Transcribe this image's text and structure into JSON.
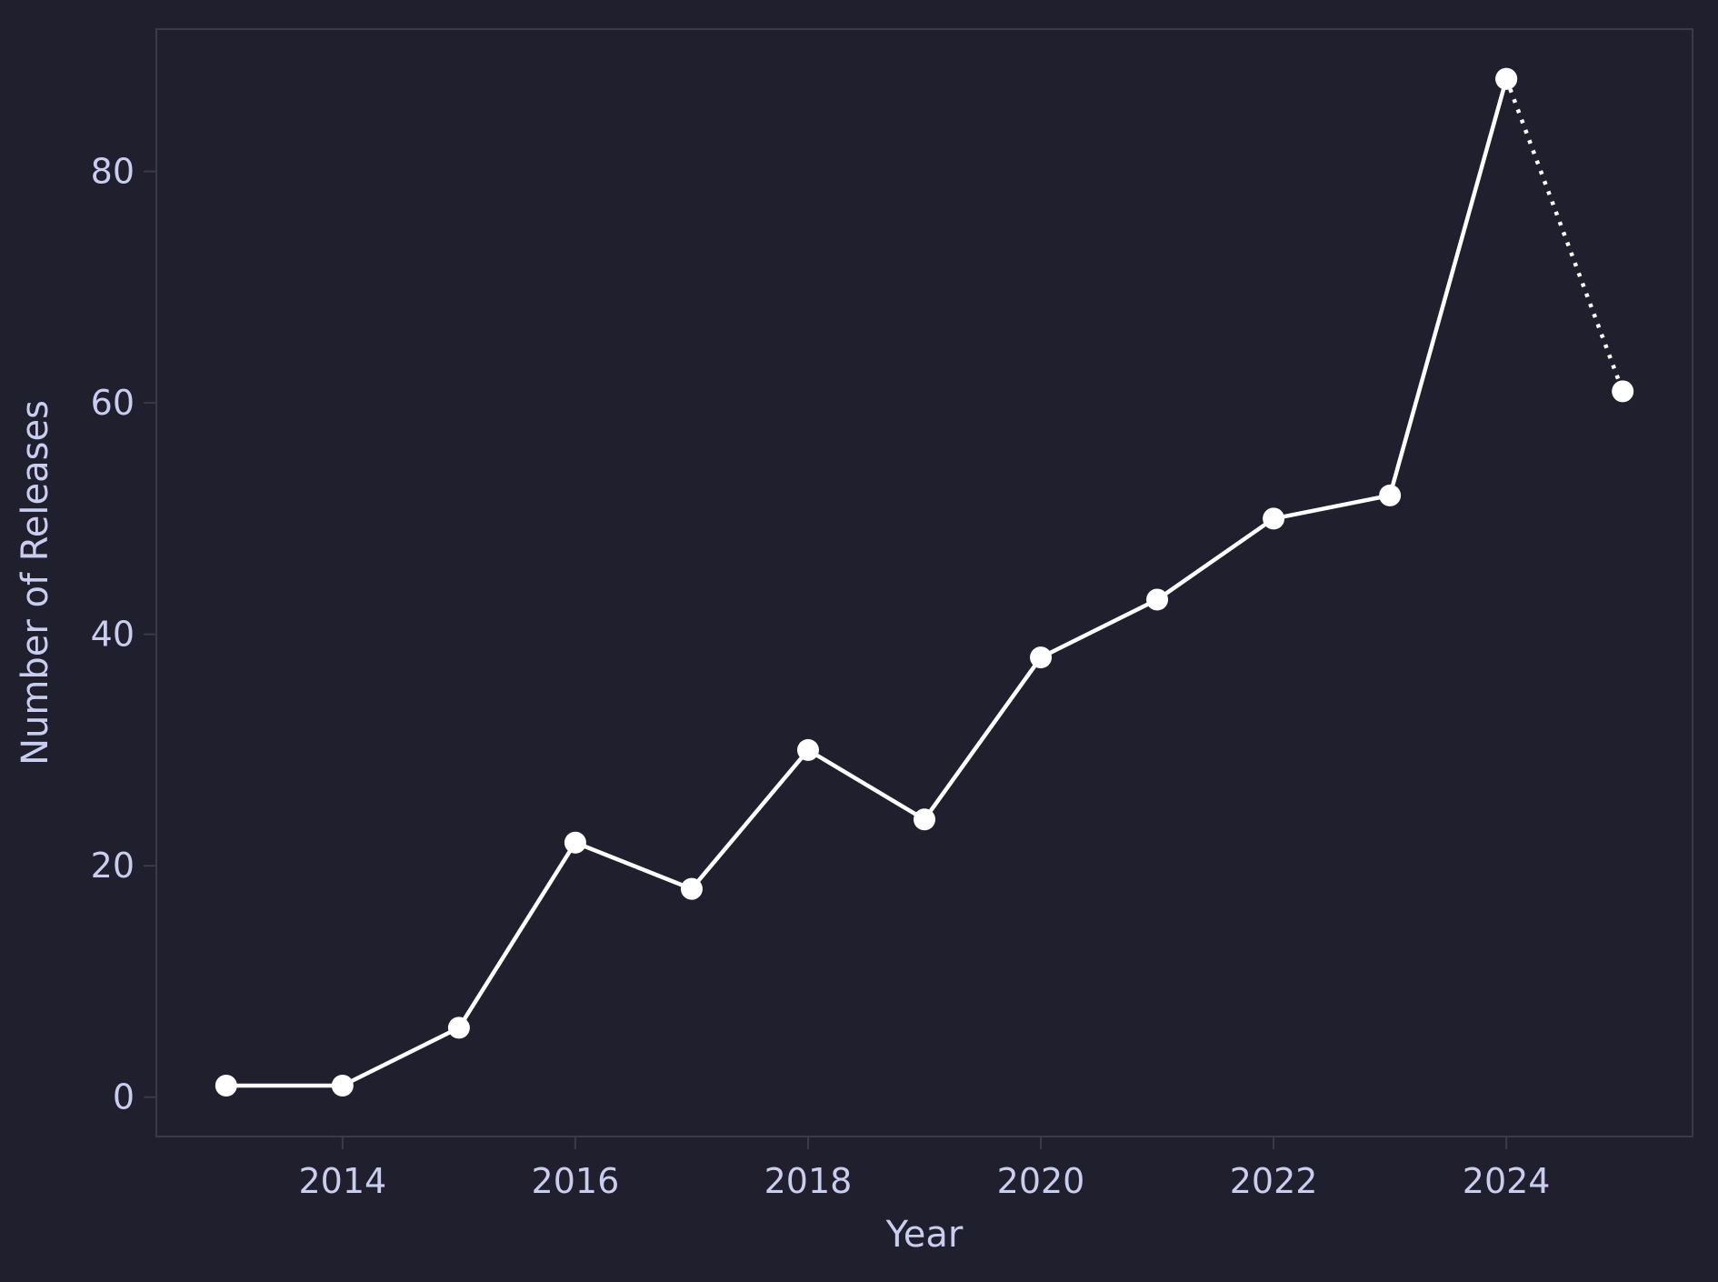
{
  "colors": {
    "background": "#1f1f2e",
    "axes_frame": "#3a3a4a",
    "tick_text": "#c9cdf0",
    "series": "#ffffff"
  },
  "chart_data": {
    "type": "line",
    "title": "",
    "xlabel": "Year",
    "ylabel": "Number of Releases",
    "xlim": [
      2012.4,
      2025.6
    ],
    "ylim": [
      -3.4,
      92.3
    ],
    "x_ticks": [
      2014,
      2016,
      2018,
      2020,
      2022,
      2024
    ],
    "y_ticks": [
      0,
      20,
      40,
      60,
      80
    ],
    "grid": false,
    "legend": "none",
    "series": [
      {
        "line_style": "solid",
        "marker": "circle",
        "x": [
          2013,
          2014,
          2015,
          2016,
          2017,
          2018,
          2019,
          2020,
          2021,
          2022,
          2023,
          2024
        ],
        "y": [
          1,
          1,
          6,
          22,
          18,
          30,
          24,
          38,
          43,
          50,
          52,
          88
        ]
      },
      {
        "line_style": "dotted",
        "marker": "circle",
        "x": [
          2024,
          2025
        ],
        "y": [
          88,
          61
        ]
      }
    ]
  }
}
